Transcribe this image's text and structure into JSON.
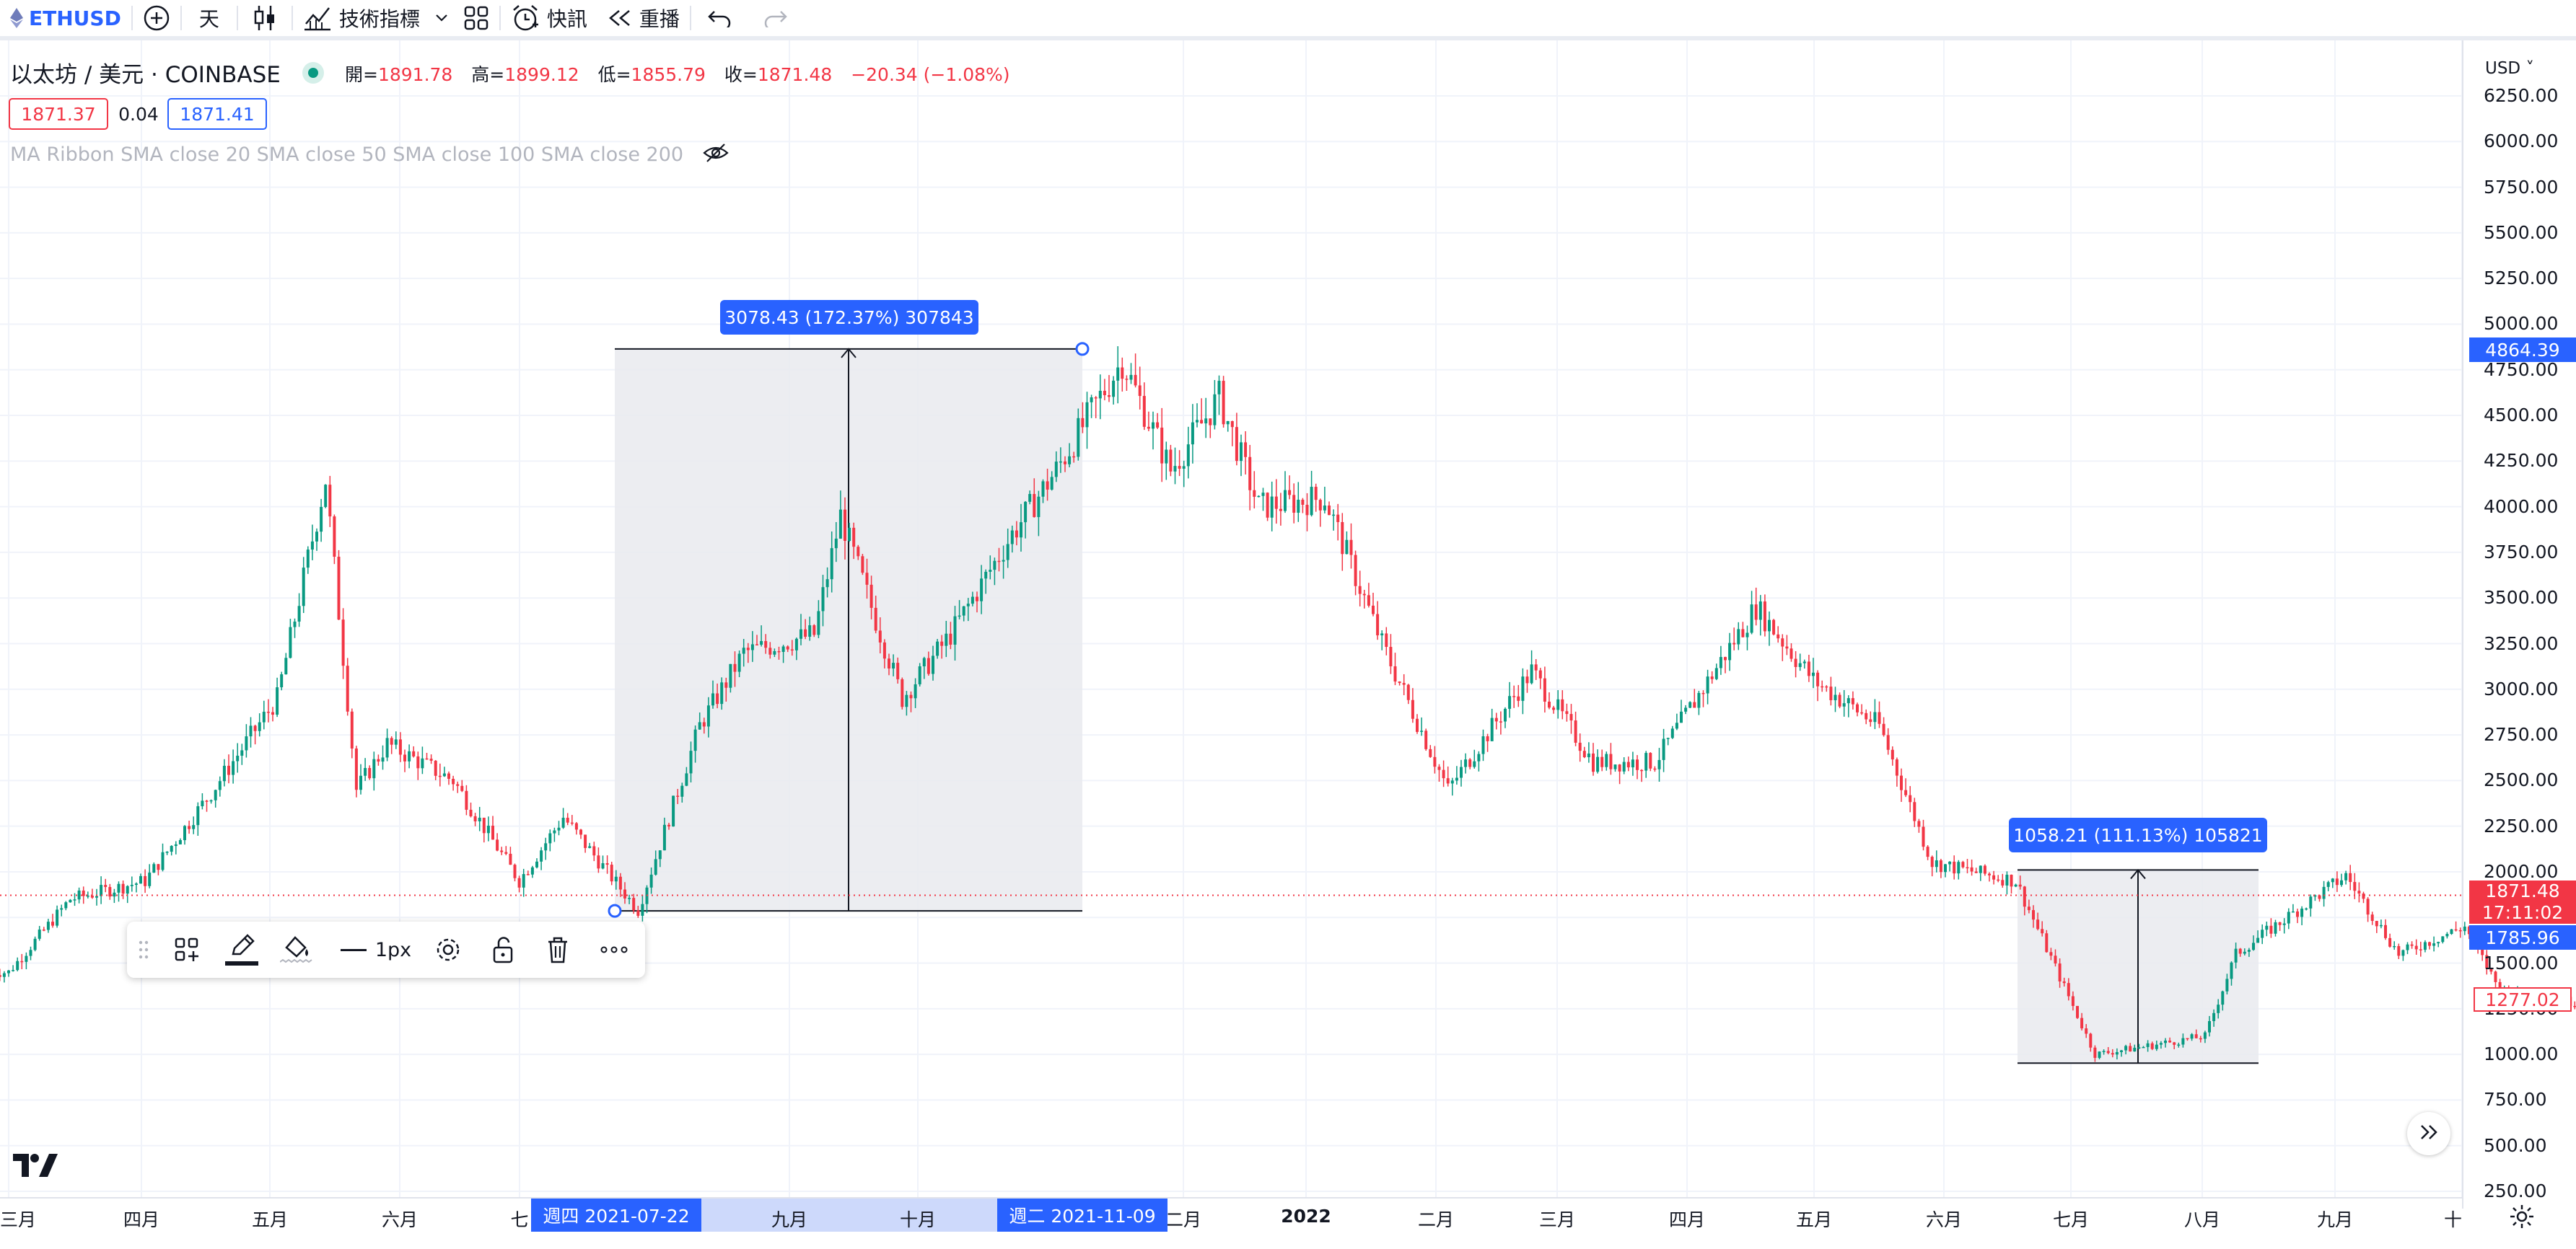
{
  "toolbar": {
    "symbol": "ETHUSD",
    "interval": "天",
    "indicators_label": "技術指標",
    "alert_label": "快訊",
    "replay_label": "重播"
  },
  "header": {
    "title": "以太坊 / 美元 · COINBASE",
    "open_label": "開=",
    "open_value": "1891.78",
    "high_label": "高=",
    "high_value": "1899.12",
    "low_label": "低=",
    "low_value": "1855.79",
    "close_label": "收=",
    "close_value": "1871.48",
    "change": "−20.34 (−1.08%)",
    "bid": "1871.37",
    "spread": "0.04",
    "ask": "1871.41"
  },
  "indicator_legend": "MA Ribbon SMA close 20 SMA close 50 SMA close 100 SMA close 200",
  "currency": "USD",
  "colors": {
    "up": "#089981",
    "down": "#f23645",
    "accent": "#2962ff"
  },
  "drawing_toolbar": {
    "width_label": "1px"
  },
  "price_tags": {
    "measure_top": "4864.39",
    "last_price": "1871.48",
    "countdown": "17:11:02",
    "measure_mid": "1785.96",
    "ma_value": "1277.02"
  },
  "time_tags": {
    "start": "週四 2021-07-22",
    "end": "週二 2021-11-09"
  },
  "measurements": [
    {
      "label": "3078.43 (172.37%) 307843",
      "from_price": 1786,
      "to_price": 4864
    },
    {
      "label": "1058.21 (111.13%) 105821",
      "from_price": 952,
      "to_price": 2010
    }
  ],
  "chart_data": {
    "type": "candlestick",
    "symbol": "ETHUSD",
    "exchange": "COINBASE",
    "timeframe": "1D",
    "y_ticks": [
      "6250.00",
      "6000.00",
      "5750.00",
      "5500.00",
      "5250.00",
      "5000.00",
      "4750.00",
      "4500.00",
      "4250.00",
      "4000.00",
      "3750.00",
      "3500.00",
      "3250.00",
      "3000.00",
      "2750.00",
      "2500.00",
      "2250.00",
      "2000.00",
      "1750.00",
      "1500.00",
      "1250.00",
      "1000.00",
      "750.00",
      "500.00",
      "250.00"
    ],
    "ylim": [
      250,
      6250
    ],
    "x_ticks": [
      "三月",
      "四月",
      "五月",
      "六月",
      "七",
      "九月",
      "十月",
      "二月",
      "2022",
      "二月",
      "三月",
      "四月",
      "五月",
      "六月",
      "七月",
      "八月",
      "九月",
      "十"
    ],
    "anchors": [
      {
        "date": "2021-03-01",
        "close": 1450
      },
      {
        "date": "2021-03-15",
        "close": 1850
      },
      {
        "date": "2021-04-01",
        "close": 1950
      },
      {
        "date": "2021-04-15",
        "close": 2400
      },
      {
        "date": "2021-05-01",
        "close": 2950
      },
      {
        "date": "2021-05-12",
        "close": 4150
      },
      {
        "date": "2021-05-19",
        "close": 2450
      },
      {
        "date": "2021-05-26",
        "close": 2700
      },
      {
        "date": "2021-06-10",
        "close": 2500
      },
      {
        "date": "2021-06-25",
        "close": 1950
      },
      {
        "date": "2021-07-05",
        "close": 2300
      },
      {
        "date": "2021-07-22",
        "close": 1790
      },
      {
        "date": "2021-08-05",
        "close": 2800
      },
      {
        "date": "2021-08-15",
        "close": 3200
      },
      {
        "date": "2021-08-31",
        "close": 3300
      },
      {
        "date": "2021-09-06",
        "close": 3950
      },
      {
        "date": "2021-09-20",
        "close": 2950
      },
      {
        "date": "2021-10-01",
        "close": 3300
      },
      {
        "date": "2021-10-15",
        "close": 3850
      },
      {
        "date": "2021-10-25",
        "close": 4200
      },
      {
        "date": "2021-11-09",
        "close": 4800
      },
      {
        "date": "2021-11-20",
        "close": 4200
      },
      {
        "date": "2021-12-01",
        "close": 4600
      },
      {
        "date": "2021-12-10",
        "close": 4000
      },
      {
        "date": "2021-12-25",
        "close": 4050
      },
      {
        "date": "2022-01-07",
        "close": 3250
      },
      {
        "date": "2022-01-22",
        "close": 2450
      },
      {
        "date": "2022-02-10",
        "close": 3100
      },
      {
        "date": "2022-02-24",
        "close": 2600
      },
      {
        "date": "2022-03-10",
        "close": 2600
      },
      {
        "date": "2022-04-02",
        "close": 3450
      },
      {
        "date": "2022-04-15",
        "close": 3050
      },
      {
        "date": "2022-04-30",
        "close": 2800
      },
      {
        "date": "2022-05-12",
        "close": 2050
      },
      {
        "date": "2022-05-31",
        "close": 1950
      },
      {
        "date": "2022-06-18",
        "close": 1000
      },
      {
        "date": "2022-07-01",
        "close": 1050
      },
      {
        "date": "2022-07-13",
        "close": 1100
      },
      {
        "date": "2022-07-20",
        "close": 1550
      },
      {
        "date": "2022-08-14",
        "close": 1980
      },
      {
        "date": "2022-08-26",
        "close": 1550
      },
      {
        "date": "2022-09-10",
        "close": 1700
      },
      {
        "date": "2022-09-18",
        "close": 1350
      },
      {
        "date": "2022-10-01",
        "close": 1300
      },
      {
        "date": "2022-10-08",
        "close": 1275
      }
    ]
  }
}
